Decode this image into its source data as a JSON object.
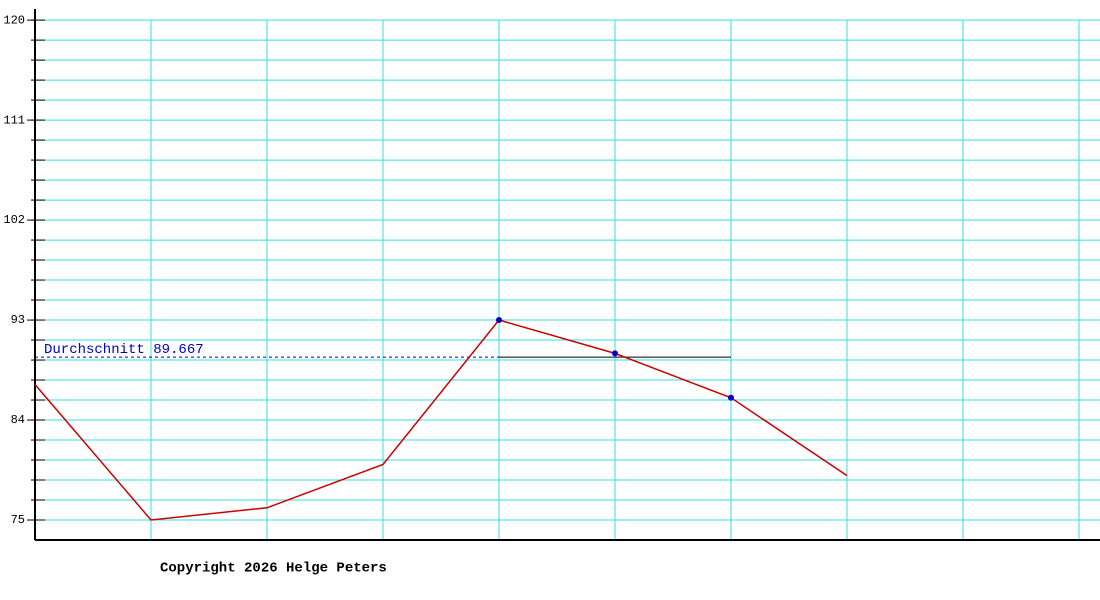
{
  "chart_data": {
    "type": "line",
    "categories": [
      null,
      null,
      null,
      null,
      null,
      null,
      null,
      null,
      null,
      null
    ],
    "series": [
      {
        "color": "#cc0000",
        "values": [
          87.2,
          75,
          76.1,
          80,
          93,
          90,
          86,
          79,
          null,
          null
        ]
      }
    ],
    "ylim": [
      73.2,
      121
    ],
    "yticks": [
      75,
      84,
      93,
      102,
      111,
      120
    ],
    "yminorticks": [
      75,
      76.8,
      78.6,
      80.4,
      82.2,
      84,
      85.8,
      87.6,
      89.4,
      91.2,
      93,
      94.8,
      96.6,
      98.4,
      100.2,
      102,
      103.8,
      105.6,
      107.4,
      109.2,
      111,
      112.8,
      114.6,
      116.4,
      118.2,
      120
    ],
    "grid": true,
    "grid_color": "#33e0e0",
    "marker_color": "#0000cc",
    "average": {
      "label": "Durchschnitt 89.667",
      "value": 89.667,
      "from": 4,
      "to": 6,
      "color": "#0000cc"
    },
    "footer": "Copyright 2026 Helge Peters"
  }
}
